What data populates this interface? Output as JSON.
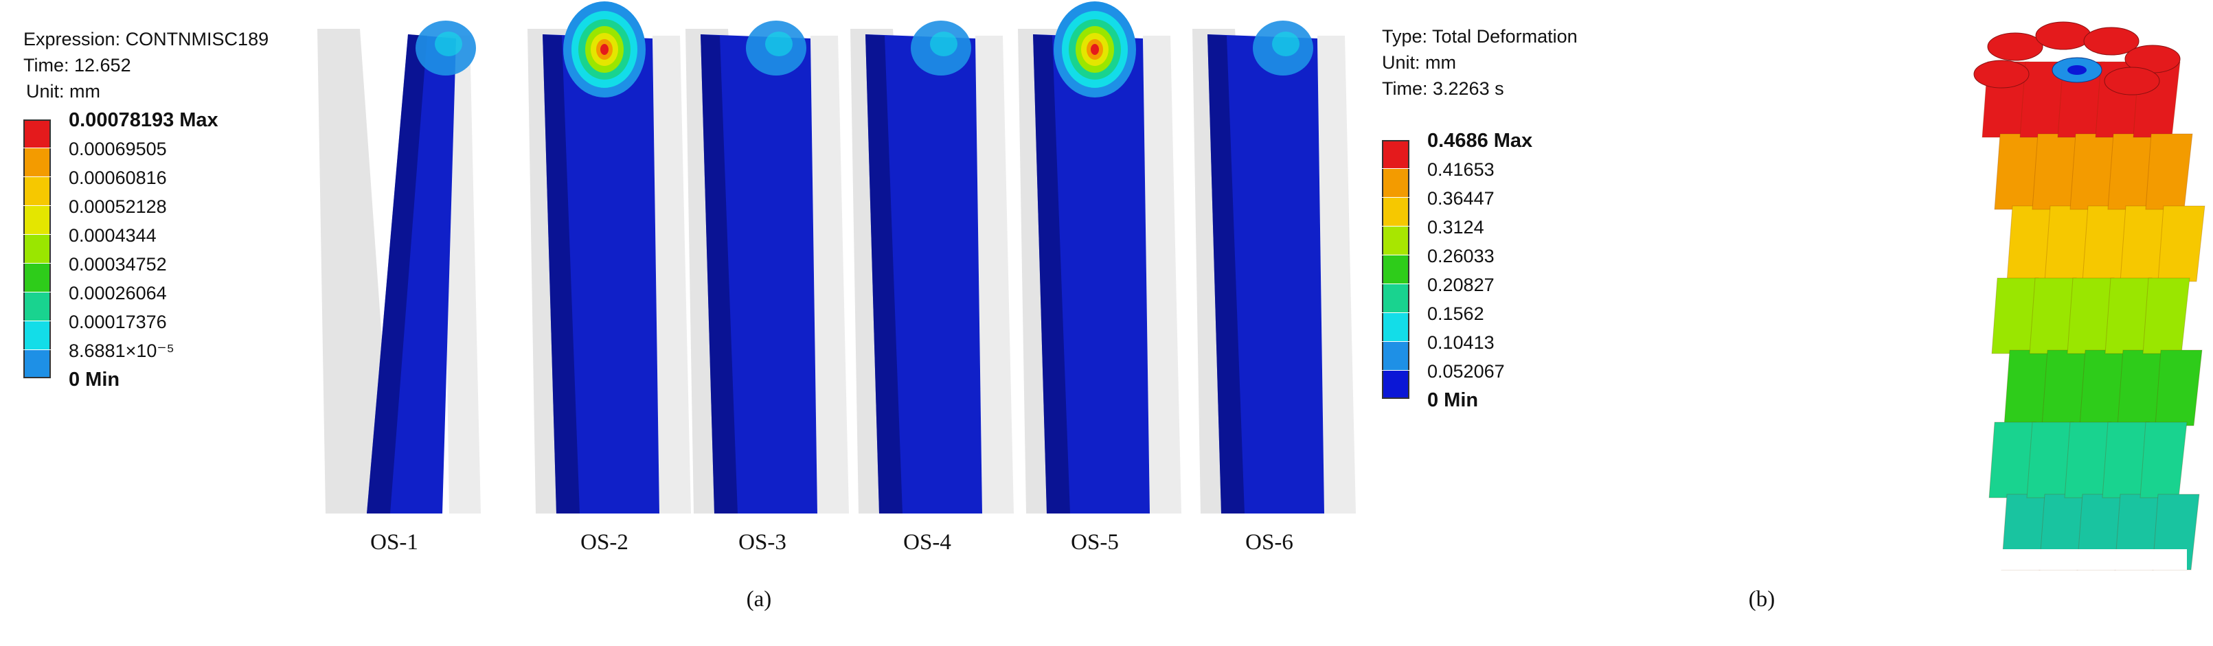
{
  "legend_a": {
    "expression": "Expression: CONTNMISC189",
    "time": "Time: 12.652",
    "unit": "Unit: mm",
    "levels": [
      {
        "label": "0.00078193 Max",
        "color": "#e41a1c",
        "bold": true
      },
      {
        "label": "0.00069505",
        "color": "#f39b00",
        "bold": false
      },
      {
        "label": "0.00060816",
        "color": "#f6c800",
        "bold": false
      },
      {
        "label": "0.00052128",
        "color": "#e4e600",
        "bold": false
      },
      {
        "label": "0.0004344",
        "color": "#9ae600",
        "bold": false
      },
      {
        "label": "0.00034752",
        "color": "#2ecc1a",
        "bold": false
      },
      {
        "label": "0.00026064",
        "color": "#19d38f",
        "bold": false
      },
      {
        "label": "0.00017376",
        "color": "#13dde8",
        "bold": false
      },
      {
        "label": "8.6881×10⁻⁵",
        "color": "#1e90e6",
        "bold": false
      },
      {
        "label": "0 Min",
        "color": "#0b17d6",
        "bold": true
      }
    ]
  },
  "legend_b": {
    "type": "Type: Total Deformation",
    "unit": "Unit: mm",
    "time": "Time: 3.2263 s",
    "levels": [
      {
        "label": "0.4686 Max",
        "color": "#e41a1c",
        "bold": true
      },
      {
        "label": "0.41653",
        "color": "#f39b00",
        "bold": false
      },
      {
        "label": "0.36447",
        "color": "#f6c800",
        "bold": false
      },
      {
        "label": "0.3124",
        "color": "#a8e600",
        "bold": false
      },
      {
        "label": "0.26033",
        "color": "#2ecc1a",
        "bold": false
      },
      {
        "label": "0.20827",
        "color": "#19d38f",
        "bold": false
      },
      {
        "label": "0.1562",
        "color": "#13dde8",
        "bold": false
      },
      {
        "label": "0.10413",
        "color": "#1e90e6",
        "bold": false
      },
      {
        "label": "0.052067",
        "color": "#0b17d6",
        "bold": false
      },
      {
        "label": "0 Min",
        "color": "#0b17d6",
        "bold": true
      }
    ]
  },
  "panels": [
    {
      "label": "OS-1",
      "hotspot": "low"
    },
    {
      "label": "OS-2",
      "hotspot": "high"
    },
    {
      "label": "OS-3",
      "hotspot": "low"
    },
    {
      "label": "OS-4",
      "hotspot": "low"
    },
    {
      "label": "OS-5",
      "hotspot": "high"
    },
    {
      "label": "OS-6",
      "hotspot": "low"
    }
  ],
  "captions": {
    "a": "(a)",
    "b": "(b)"
  },
  "colors": {
    "base_blue": "#1020c8",
    "dark_blue": "#050a6a",
    "ghost_gray": "#d9d9d9"
  }
}
